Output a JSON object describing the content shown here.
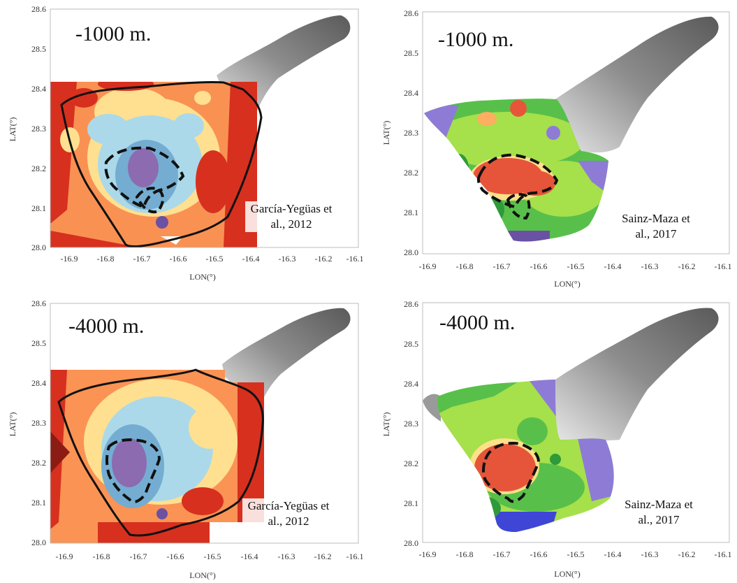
{
  "maps": [
    {
      "id": "tl",
      "depth_label": "-1000 m.",
      "citation_line1": "García-Yegüas et",
      "citation_line2": "al., 2012",
      "scheme": "warm-cool",
      "x_ticks": [
        "-16.9",
        "-16.8",
        "-16.7",
        "-16.6",
        "-16.5",
        "-16.4",
        "-16.3",
        "-16.2",
        "-16.1"
      ],
      "y_ticks": [
        "28.6",
        "28.5",
        "28.4",
        "28.3",
        "28.2",
        "28.1",
        "28.0"
      ],
      "x_axis_label": "LON(°)",
      "y_axis_label": "LAT(°)"
    },
    {
      "id": "tr",
      "depth_label": "-1000 m.",
      "citation_line1": "Sainz-Maza et",
      "citation_line2": "al., 2017",
      "scheme": "green-red",
      "x_ticks": [
        "-16.9",
        "-16.8",
        "-16.7",
        "-16.6",
        "-16.5",
        "-16.4",
        "-16.3",
        "-16.2",
        "-16.1"
      ],
      "y_ticks": [
        "28.6",
        "28.5",
        "28.4",
        "28.3",
        "28.2",
        "28.1",
        "28.0"
      ],
      "x_axis_label": "LON(°)",
      "y_axis_label": "LAT(°)"
    },
    {
      "id": "bl",
      "depth_label": "-4000 m.",
      "citation_line1": "García-Yegüas et",
      "citation_line2": "al., 2012",
      "scheme": "warm-cool",
      "x_ticks": [
        "-16.9",
        "-16.8",
        "-16.7",
        "-16.6",
        "-16.5",
        "-16.4",
        "-16.3",
        "-16.2",
        "-16.1"
      ],
      "y_ticks": [
        "28.6",
        "28.5",
        "28.4",
        "28.3",
        "28.2",
        "28.1",
        "28.0"
      ],
      "x_axis_label": "LON(°)",
      "y_axis_label": "LAT(°)"
    },
    {
      "id": "br",
      "depth_label": "-4000 m.",
      "citation_line1": "Sainz-Maza et",
      "citation_line2": "al., 2017",
      "scheme": "green-red",
      "x_ticks": [
        "-16.9",
        "-16.8",
        "-16.7",
        "-16.6",
        "-16.5",
        "-16.4",
        "-16.3",
        "-16.2",
        "-16.1"
      ],
      "y_ticks": [
        "28.6",
        "28.5",
        "28.4",
        "28.3",
        "28.2",
        "28.1",
        "28.0"
      ],
      "x_axis_label": "LON(°)",
      "y_axis_label": "LAT(°)"
    }
  ],
  "colors": {
    "warm_red": "#d7301f",
    "warm_orange": "#f46d43",
    "warm_yellow": "#fee090",
    "cool_light": "#abd9e9",
    "cool_blue": "#74add1",
    "cool_violet": "#8c6bb1",
    "green_light": "#a6e04a",
    "green_mid": "#58c04a",
    "green_dark": "#2e9a3a",
    "anomaly_red": "#e6553a",
    "violet": "#8e7bd6",
    "relief_grey": "#9a9a9a"
  }
}
